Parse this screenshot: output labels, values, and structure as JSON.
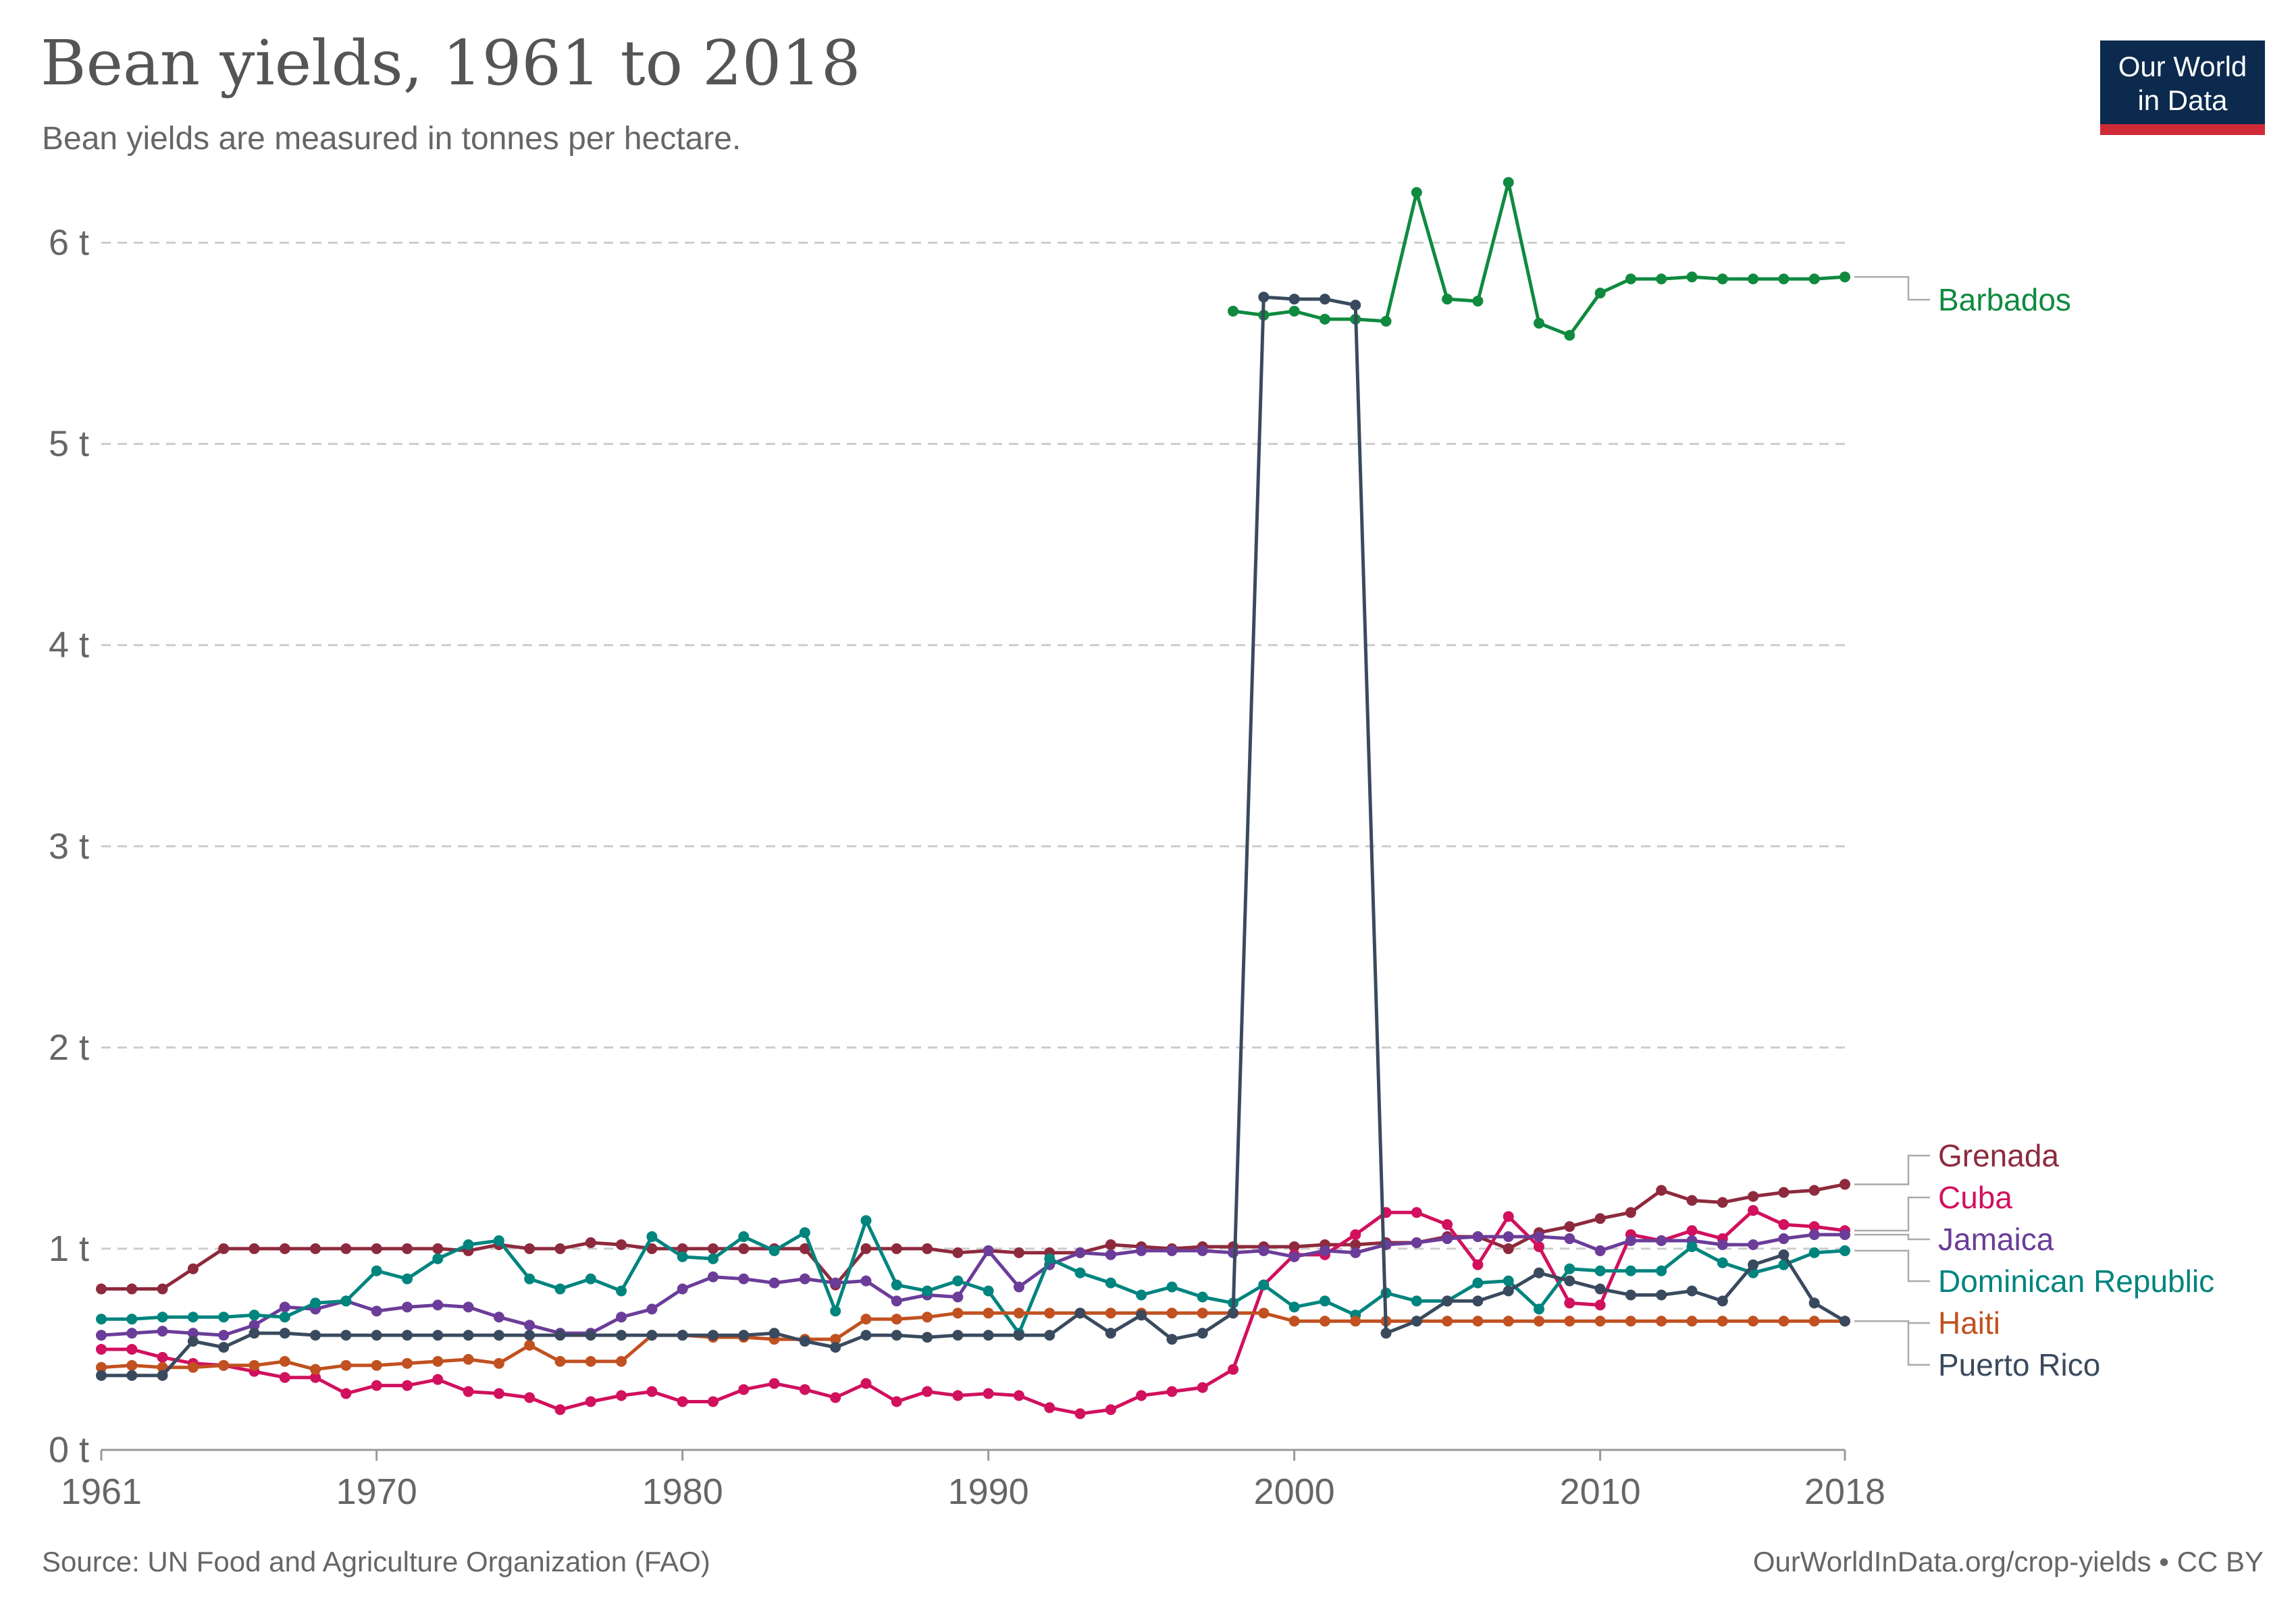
{
  "header": {
    "title": "Bean yields, 1961 to 2018",
    "subtitle": "Bean yields are measured in tonnes per hectare."
  },
  "logo": {
    "line1": "Our World",
    "line2": "in Data"
  },
  "footer": {
    "source": "Source: UN Food and Agriculture Organization (FAO)",
    "credit": "OurWorldInData.org/crop-yields • CC BY"
  },
  "colors": {
    "background": "#ffffff",
    "gridline": "#cccccc",
    "axis": "#999999",
    "text": "#666666",
    "logo_bg": "#0b2a4d",
    "logo_accent": "#ce2b37"
  },
  "chart_data": {
    "type": "line",
    "title": "Bean yields, 1961 to 2018",
    "subtitle": "Bean yields are measured in tonnes per hectare.",
    "xlabel": "",
    "ylabel": "",
    "xlim": [
      1961,
      2018
    ],
    "ylim": [
      0,
      6.2
    ],
    "x_ticks": [
      1961,
      1970,
      1980,
      1990,
      2000,
      2010,
      2018
    ],
    "y_ticks": [
      0,
      1,
      2,
      3,
      4,
      5,
      6
    ],
    "y_tick_labels": [
      "0 t",
      "1 t",
      "2 t",
      "3 t",
      "4 t",
      "5 t",
      "6 t"
    ],
    "grid": "horizontal dashed",
    "legend": "right, labels at line ends",
    "series": [
      {
        "name": "Barbados",
        "color": "#0f8a3f",
        "start": 1998,
        "values": [
          5.66,
          5.64,
          5.66,
          5.62,
          5.62,
          5.61,
          6.25,
          5.72,
          5.71,
          6.3,
          5.6,
          5.54,
          5.75,
          5.82,
          5.82,
          5.83,
          5.82,
          5.82,
          5.82,
          5.82,
          5.83
        ]
      },
      {
        "name": "Grenada",
        "color": "#8e2a3d",
        "start": 1961,
        "values": [
          0.8,
          0.8,
          0.8,
          0.9,
          1.0,
          1.0,
          1.0,
          1.0,
          1.0,
          1.0,
          1.0,
          1.0,
          0.99,
          1.02,
          1.0,
          1.0,
          1.03,
          1.02,
          1.0,
          1.0,
          1.0,
          1.0,
          1.0,
          1.0,
          0.82,
          1.0,
          1.0,
          1.0,
          0.98,
          0.99,
          0.98,
          0.98,
          0.98,
          1.02,
          1.01,
          1.0,
          1.01,
          1.01,
          1.01,
          1.01,
          1.02,
          1.02,
          1.03,
          1.03,
          1.06,
          1.06,
          1.0,
          1.08,
          1.11,
          1.15,
          1.18,
          1.29,
          1.24,
          1.23,
          1.26,
          1.28,
          1.29,
          1.32
        ]
      },
      {
        "name": "Cuba",
        "color": "#d1105e",
        "start": 1961,
        "values": [
          0.5,
          0.5,
          0.46,
          0.43,
          0.42,
          0.39,
          0.36,
          0.36,
          0.28,
          0.32,
          0.32,
          0.35,
          0.29,
          0.28,
          0.26,
          0.2,
          0.24,
          0.27,
          0.29,
          0.24,
          0.24,
          0.3,
          0.33,
          0.3,
          0.26,
          0.33,
          0.24,
          0.29,
          0.27,
          0.28,
          0.27,
          0.21,
          0.18,
          0.2,
          0.27,
          0.29,
          0.31,
          0.4,
          0.82,
          0.97,
          0.97,
          1.07,
          1.18,
          1.18,
          1.12,
          0.92,
          1.16,
          1.01,
          0.73,
          0.72,
          1.07,
          1.04,
          1.09,
          1.05,
          1.19,
          1.12,
          1.11,
          1.09
        ]
      },
      {
        "name": "Jamaica",
        "color": "#6b3d99",
        "start": 1961,
        "values": [
          0.57,
          0.58,
          0.59,
          0.58,
          0.57,
          0.62,
          0.71,
          0.7,
          0.74,
          0.69,
          0.71,
          0.72,
          0.71,
          0.66,
          0.62,
          0.58,
          0.58,
          0.66,
          0.7,
          0.8,
          0.86,
          0.85,
          0.83,
          0.85,
          0.83,
          0.84,
          0.74,
          0.77,
          0.76,
          0.99,
          0.81,
          0.92,
          0.98,
          0.97,
          0.99,
          0.99,
          0.99,
          0.98,
          0.99,
          0.96,
          0.99,
          0.98,
          1.02,
          1.03,
          1.05,
          1.06,
          1.06,
          1.06,
          1.05,
          0.99,
          1.04,
          1.04,
          1.04,
          1.02,
          1.02,
          1.05,
          1.07,
          1.07
        ]
      },
      {
        "name": "Dominican Republic",
        "color": "#00847e",
        "start": 1961,
        "values": [
          0.65,
          0.65,
          0.66,
          0.66,
          0.66,
          0.67,
          0.66,
          0.73,
          0.74,
          0.89,
          0.85,
          0.95,
          1.02,
          1.04,
          0.85,
          0.8,
          0.85,
          0.79,
          1.06,
          0.96,
          0.95,
          1.06,
          0.99,
          1.08,
          0.69,
          1.14,
          0.82,
          0.79,
          0.84,
          0.79,
          0.58,
          0.95,
          0.88,
          0.83,
          0.77,
          0.81,
          0.76,
          0.73,
          0.82,
          0.71,
          0.74,
          0.67,
          0.78,
          0.74,
          0.74,
          0.83,
          0.84,
          0.7,
          0.9,
          0.89,
          0.89,
          0.89,
          1.01,
          0.93,
          0.88,
          0.92,
          0.98,
          0.99
        ]
      },
      {
        "name": "Haiti",
        "color": "#c15120",
        "start": 1961,
        "values": [
          0.41,
          0.42,
          0.41,
          0.41,
          0.42,
          0.42,
          0.44,
          0.4,
          0.42,
          0.42,
          0.43,
          0.44,
          0.45,
          0.43,
          0.52,
          0.44,
          0.44,
          0.44,
          0.57,
          0.57,
          0.56,
          0.56,
          0.55,
          0.55,
          0.55,
          0.65,
          0.65,
          0.66,
          0.68,
          0.68,
          0.68,
          0.68,
          0.68,
          0.68,
          0.68,
          0.68,
          0.68,
          0.68,
          0.68,
          0.64,
          0.64,
          0.64,
          0.64,
          0.64,
          0.64,
          0.64,
          0.64,
          0.64,
          0.64,
          0.64,
          0.64,
          0.64,
          0.64,
          0.64,
          0.64,
          0.64,
          0.64,
          0.64
        ]
      },
      {
        "name": "Puerto Rico",
        "color": "#3a4a5e",
        "start": 1961,
        "values": [
          0.37,
          0.37,
          0.37,
          0.54,
          0.51,
          0.58,
          0.58,
          0.57,
          0.57,
          0.57,
          0.57,
          0.57,
          0.57,
          0.57,
          0.57,
          0.57,
          0.57,
          0.57,
          0.57,
          0.57,
          0.57,
          0.57,
          0.58,
          0.54,
          0.51,
          0.57,
          0.57,
          0.56,
          0.57,
          0.57,
          0.57,
          0.57,
          0.68,
          0.58,
          0.67,
          0.55,
          0.58,
          0.68,
          5.73,
          5.72,
          5.72,
          5.69,
          0.58,
          0.64,
          0.74,
          0.74,
          0.79,
          0.88,
          0.84,
          0.8,
          0.77,
          0.77,
          0.79,
          0.74,
          0.92,
          0.97,
          0.73,
          0.64
        ]
      }
    ]
  }
}
